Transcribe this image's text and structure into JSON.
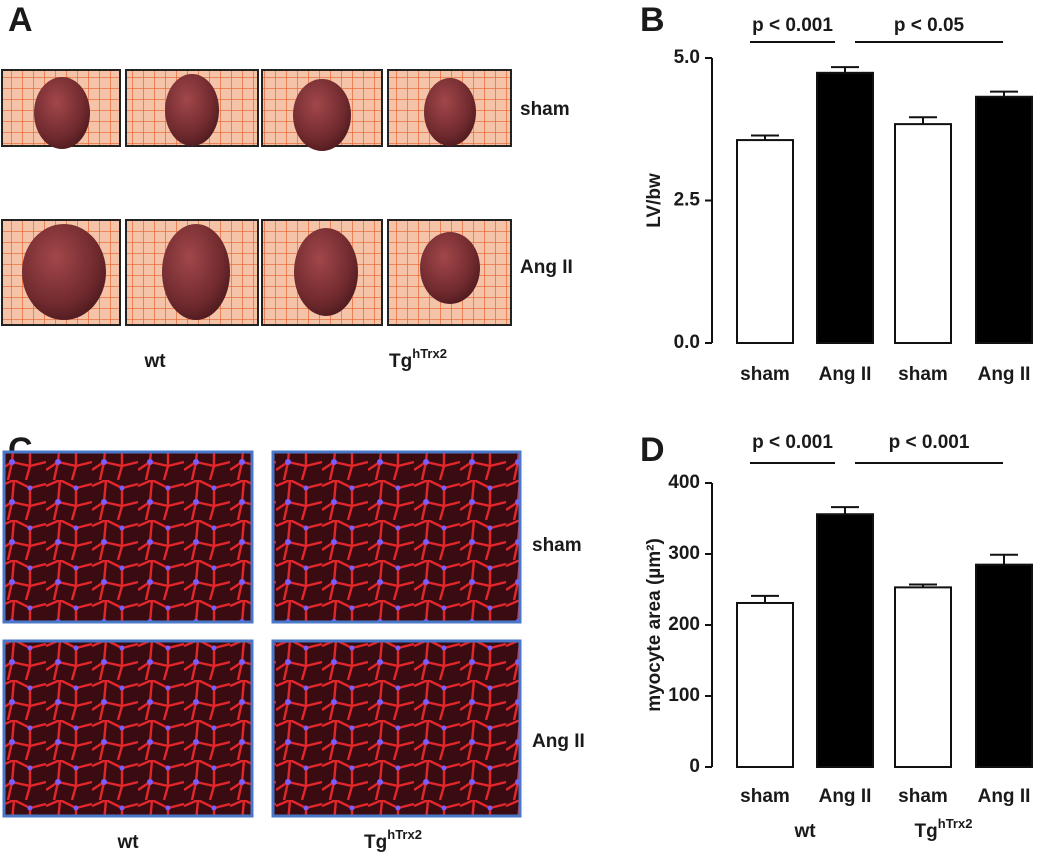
{
  "panel_labels": [
    "A",
    "B",
    "C",
    "D"
  ],
  "heart_photos": {
    "rows": [
      "sham",
      "Ang II"
    ],
    "columns": [
      "wt",
      {
        "base": "Tg",
        "superscript": "hTrx2"
      }
    ]
  },
  "histology": {
    "rows": [
      "sham",
      "Ang II"
    ],
    "columns": [
      "wt",
      {
        "base": "Tg",
        "superscript": "hTrx2"
      }
    ]
  },
  "chart_data": [
    {
      "type": "bar",
      "ylabel": "LV/bw",
      "categories": [
        "sham",
        "Ang II",
        "sham",
        "Ang II"
      ],
      "values": [
        3.56,
        4.74,
        3.84,
        4.32
      ],
      "errors": [
        0.08,
        0.1,
        0.12,
        0.09
      ],
      "bar_colors": [
        "#ffffff",
        "#000000",
        "#ffffff",
        "#000000"
      ],
      "ylim": [
        0,
        5
      ],
      "yticks": [
        {
          "value": 0,
          "label": "0.0"
        },
        {
          "value": 2.5,
          "label": "2.5"
        },
        {
          "value": 5,
          "label": "5.0"
        }
      ],
      "annotations": [
        "p < 0.001",
        "p < 0.05"
      ]
    },
    {
      "type": "bar",
      "ylabel": "myocyte area (µm²)",
      "categories": [
        "sham",
        "Ang II",
        "sham",
        "Ang II"
      ],
      "groups": [
        "wt",
        {
          "base": "Tg",
          "superscript": "hTrx2"
        }
      ],
      "values": [
        231,
        356,
        253,
        285
      ],
      "errors": [
        10,
        10,
        4,
        14
      ],
      "bar_colors": [
        "#ffffff",
        "#000000",
        "#ffffff",
        "#000000"
      ],
      "ylim": [
        0,
        400
      ],
      "yticks": [
        0,
        100,
        200,
        300,
        400
      ],
      "annotations": [
        "p < 0.001",
        "p < 0.001"
      ]
    }
  ]
}
